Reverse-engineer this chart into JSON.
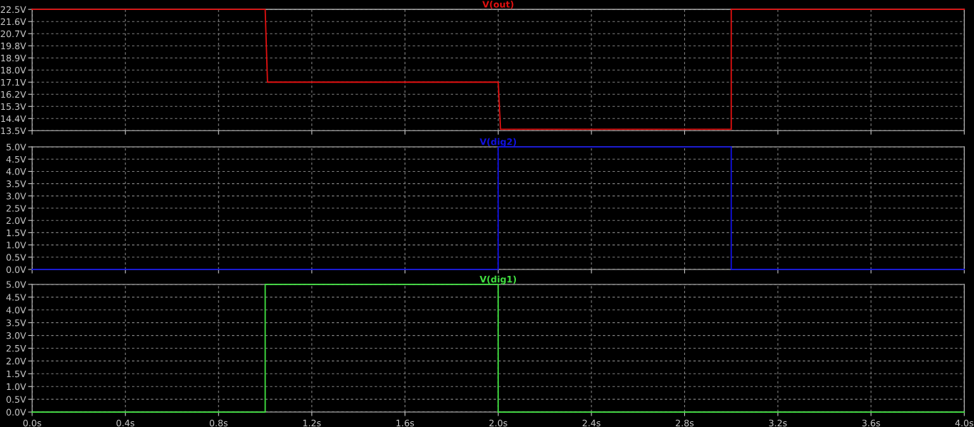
{
  "chart_data": [
    {
      "type": "line",
      "title": "V(out)",
      "x": [
        0,
        1.0,
        1.01,
        2.0,
        2.01,
        3.0,
        3.0,
        4.0
      ],
      "series": [
        {
          "color": "#e01010",
          "values": [
            22.5,
            22.5,
            17.1,
            17.1,
            13.6,
            13.6,
            22.5,
            22.5
          ]
        }
      ],
      "xlim": [
        0,
        4
      ],
      "xticks": [
        0,
        0.4,
        0.8,
        1.2,
        1.6,
        2.0,
        2.4,
        2.8,
        3.2,
        3.6,
        4.0
      ],
      "ylim": [
        13.5,
        22.5
      ],
      "yticks": [
        {
          "value": 13.5,
          "label": "13.5V"
        },
        {
          "value": 14.4,
          "label": "14.4V"
        },
        {
          "value": 15.3,
          "label": "15.3V"
        },
        {
          "value": 16.2,
          "label": "16.2V"
        },
        {
          "value": 17.1,
          "label": "17.1V"
        },
        {
          "value": 18.0,
          "label": "18.0V"
        },
        {
          "value": 18.9,
          "label": "18.9V"
        },
        {
          "value": 19.8,
          "label": "19.8V"
        },
        {
          "value": 20.7,
          "label": "20.7V"
        },
        {
          "value": 21.6,
          "label": "21.6V"
        },
        {
          "value": 22.5,
          "label": "22.5V"
        }
      ],
      "grid": true,
      "line_style": "solid",
      "tick_labels": "y"
    },
    {
      "type": "line",
      "title": "V(dig2)",
      "x": [
        0,
        2.0,
        2.0,
        3.0,
        3.0,
        4.0
      ],
      "series": [
        {
          "color": "#1010e0",
          "values": [
            0,
            0,
            5,
            5,
            0,
            0
          ]
        }
      ],
      "xlim": [
        0,
        4
      ],
      "xticks": [
        0,
        0.4,
        0.8,
        1.2,
        1.6,
        2.0,
        2.4,
        2.8,
        3.2,
        3.6,
        4.0
      ],
      "ylim": [
        0,
        5
      ],
      "yticks": [
        {
          "value": 0,
          "label": "0.0V"
        },
        {
          "value": 0.5,
          "label": "0.5V"
        },
        {
          "value": 1.0,
          "label": "1.0V"
        },
        {
          "value": 1.5,
          "label": "1.5V"
        },
        {
          "value": 2.0,
          "label": "2.0V"
        },
        {
          "value": 2.5,
          "label": "2.5V"
        },
        {
          "value": 3.0,
          "label": "3.0V"
        },
        {
          "value": 3.5,
          "label": "3.5V"
        },
        {
          "value": 4.0,
          "label": "4.0V"
        },
        {
          "value": 4.5,
          "label": "4.5V"
        },
        {
          "value": 5.0,
          "label": "5.0V"
        }
      ],
      "grid": true,
      "line_style": "solid",
      "tick_labels": "y"
    },
    {
      "type": "line",
      "title": "V(dig1)",
      "x": [
        0,
        1.0,
        1.0,
        2.0,
        2.0,
        4.0
      ],
      "series": [
        {
          "color": "#40e040",
          "values": [
            0,
            0,
            5,
            5,
            0,
            0
          ]
        }
      ],
      "xlim": [
        0,
        4
      ],
      "xticks": [
        {
          "value": 0,
          "label": "0.0s"
        },
        {
          "value": 0.4,
          "label": "0.4s"
        },
        {
          "value": 0.8,
          "label": "0.8s"
        },
        {
          "value": 1.2,
          "label": "1.2s"
        },
        {
          "value": 1.6,
          "label": "1.6s"
        },
        {
          "value": 2.0,
          "label": "2.0s"
        },
        {
          "value": 2.4,
          "label": "2.4s"
        },
        {
          "value": 2.8,
          "label": "2.8s"
        },
        {
          "value": 3.2,
          "label": "3.2s"
        },
        {
          "value": 3.6,
          "label": "3.6s"
        },
        {
          "value": 4.0,
          "label": "4.0s"
        }
      ],
      "ylim": [
        0,
        5
      ],
      "yticks": [
        {
          "value": 0,
          "label": "0.0V"
        },
        {
          "value": 0.5,
          "label": "0.5V"
        },
        {
          "value": 1.0,
          "label": "1.0V"
        },
        {
          "value": 1.5,
          "label": "1.5V"
        },
        {
          "value": 2.0,
          "label": "2.0V"
        },
        {
          "value": 2.5,
          "label": "2.5V"
        },
        {
          "value": 3.0,
          "label": "3.0V"
        },
        {
          "value": 3.5,
          "label": "3.5V"
        },
        {
          "value": 4.0,
          "label": "4.0V"
        },
        {
          "value": 4.5,
          "label": "4.5V"
        },
        {
          "value": 5.0,
          "label": "5.0V"
        }
      ],
      "grid": true,
      "line_style": "solid"
    }
  ]
}
